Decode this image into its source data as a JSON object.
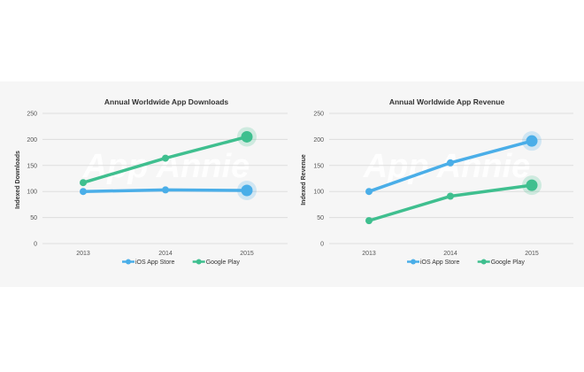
{
  "colors": {
    "ios": "#4aaee8",
    "google": "#3fbf8f",
    "grid": "#dddddd"
  },
  "watermark": "App Annie",
  "chart_data": [
    {
      "type": "line",
      "title": "Annual Worldwide App Downloads",
      "ylabel": "Indexed Downloads",
      "xlabel": "",
      "categories": [
        "2013",
        "2014",
        "2015"
      ],
      "ylim": [
        0,
        250
      ],
      "yticks": [
        0,
        50,
        100,
        150,
        200,
        250
      ],
      "grid": true,
      "legend": "bottom",
      "series": [
        {
          "name": "iOS App Store",
          "values": [
            100,
            103,
            102
          ]
        },
        {
          "name": "Google Play",
          "values": [
            117,
            164,
            205
          ]
        }
      ]
    },
    {
      "type": "line",
      "title": "Annual Worldwide App Revenue",
      "ylabel": "Indexed Revenue",
      "xlabel": "",
      "categories": [
        "2013",
        "2014",
        "2015"
      ],
      "ylim": [
        0,
        250
      ],
      "yticks": [
        0,
        50,
        100,
        150,
        200,
        250
      ],
      "grid": true,
      "legend": "bottom",
      "series": [
        {
          "name": "iOS App Store",
          "values": [
            100,
            155,
            197
          ]
        },
        {
          "name": "Google Play",
          "values": [
            44,
            91,
            112
          ]
        }
      ]
    }
  ]
}
